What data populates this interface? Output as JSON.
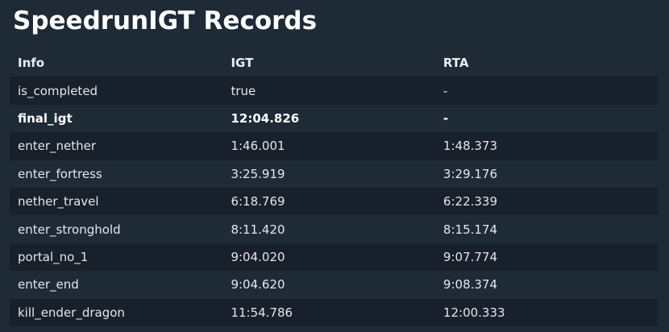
{
  "page": {
    "title": "SpeedrunIGT Records"
  },
  "table": {
    "headers": [
      "Info",
      "IGT",
      "RTA"
    ],
    "rows": [
      {
        "info": "is_completed",
        "igt": "true",
        "rta": "-",
        "bold": false
      },
      {
        "info": "final_igt",
        "igt": "12:04.826",
        "rta": "-",
        "bold": true
      },
      {
        "info": "enter_nether",
        "igt": "1:46.001",
        "rta": "1:48.373",
        "bold": false
      },
      {
        "info": "enter_fortress",
        "igt": "3:25.919",
        "rta": "3:29.176",
        "bold": false
      },
      {
        "info": "nether_travel",
        "igt": "6:18.769",
        "rta": "6:22.339",
        "bold": false
      },
      {
        "info": "enter_stronghold",
        "igt": "8:11.420",
        "rta": "8:15.174",
        "bold": false
      },
      {
        "info": "portal_no_1",
        "igt": "9:04.020",
        "rta": "9:07.774",
        "bold": false
      },
      {
        "info": "enter_end",
        "igt": "9:04.620",
        "rta": "9:08.374",
        "bold": false
      },
      {
        "info": "kill_ender_dragon",
        "igt": "11:54.786",
        "rta": "12:00.333",
        "bold": false
      }
    ]
  },
  "colors": {
    "background": "#1f2a37",
    "row_stripe": "#17202b",
    "text": "#e3e7ee"
  }
}
